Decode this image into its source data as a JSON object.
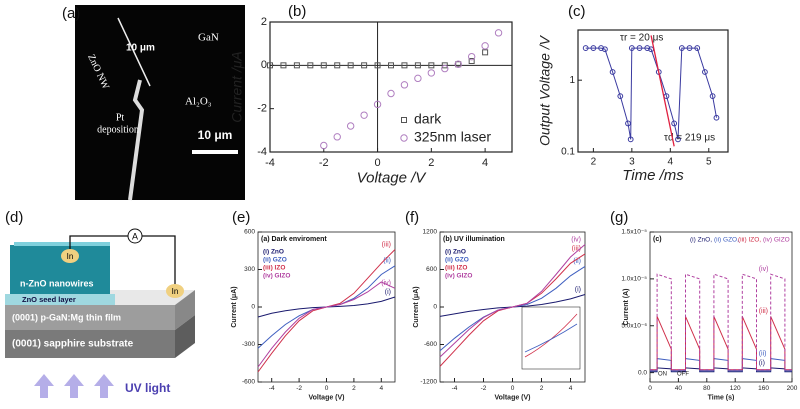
{
  "panel_a": {
    "label": "(a)",
    "gan": "GaN",
    "nw": "ZnO NW",
    "nw_length": "10 μm",
    "pt": "Pt",
    "deposition": "deposition",
    "al2o3": "Al₂O₃",
    "scale_bar": "10 μm"
  },
  "panel_d": {
    "label": "(d)",
    "ammeter": "A",
    "in_left": "In",
    "in_right": "In",
    "nanowires": "n-ZnO nanowires",
    "seed": "ZnO seed layer",
    "gan": "(0001) p-GaN:Mg thin film",
    "sapphire": "(0001) sapphire substrate",
    "uv": "UV light"
  },
  "chart_data": [
    {
      "type": "scatter",
      "panel": "(b)",
      "x_label": "Voltage  /V",
      "y_label": "Current /μA",
      "xlim": [
        -4,
        5
      ],
      "xticks": [
        -4,
        -2,
        0,
        2,
        4
      ],
      "ylim": [
        -4,
        2
      ],
      "yticks": [
        -4,
        -2,
        0,
        2
      ],
      "zero_lines": true,
      "legend": "lower right",
      "series": [
        {
          "name": "dark",
          "color": "#555555",
          "marker": "square",
          "x": [
            -4,
            -3.5,
            -3,
            -2.5,
            -2,
            -1.5,
            -1,
            -0.5,
            0,
            0.5,
            1,
            1.5,
            2,
            2.5,
            3,
            3.5,
            4
          ],
          "values": [
            0,
            0,
            0,
            0,
            0,
            0,
            0,
            0,
            0,
            0,
            0,
            0,
            0,
            0,
            0.05,
            0.2,
            0.6
          ]
        },
        {
          "name": "325nm laser",
          "color": "#b07fc0",
          "marker": "circle",
          "x": [
            -2,
            -1.5,
            -1,
            -0.5,
            0,
            0.5,
            1,
            1.5,
            2,
            2.5,
            3,
            3.5,
            4,
            4.5
          ],
          "values": [
            -3.7,
            -3.3,
            -2.8,
            -2.3,
            -1.8,
            -1.3,
            -0.9,
            -0.6,
            -0.35,
            -0.15,
            0.05,
            0.4,
            0.9,
            1.5
          ]
        }
      ]
    },
    {
      "type": "line",
      "panel": "(c)",
      "x_label": "Time /ms",
      "y_label": "Output Voltage /V",
      "xlim": [
        1.6,
        5.5
      ],
      "xticks": [
        2,
        3,
        4,
        5
      ],
      "ylim": [
        0.1,
        5
      ],
      "yticks": [
        0.1,
        1
      ],
      "yscale": "log",
      "annotations": [
        "τr = 20 μs",
        "τd = 219 μs"
      ],
      "x": [
        1.8,
        2.0,
        2.2,
        2.3,
        2.5,
        2.7,
        2.9,
        2.97,
        3.0,
        3.2,
        3.4,
        3.5,
        3.7,
        3.9,
        4.1,
        4.2,
        4.3,
        4.5,
        4.7,
        4.9,
        5.1,
        5.2
      ],
      "series": [
        {
          "name": null,
          "color": "#3a3aa0",
          "marker": "circle",
          "values": [
            2.8,
            2.8,
            2.8,
            2.7,
            1.3,
            0.6,
            0.25,
            0.15,
            2.8,
            2.8,
            2.8,
            2.7,
            1.3,
            0.6,
            0.25,
            0.15,
            2.8,
            2.8,
            2.8,
            1.3,
            0.6,
            0.3
          ]
        }
      ]
    },
    {
      "type": "line",
      "panel": "(e)",
      "title": "(a) Dark enviroment",
      "x_label": "Voltage (V)",
      "y_label": "Current (μA)",
      "xlim": [
        -5,
        5
      ],
      "xticks": [
        -4,
        -2,
        0,
        2,
        4
      ],
      "ylim": [
        -600,
        600
      ],
      "yticks": [
        -600,
        -300,
        0,
        300,
        600
      ],
      "legend": "upper left",
      "x": [
        -5,
        -4,
        -3,
        -2,
        -1,
        0,
        1,
        2,
        3,
        4,
        5
      ],
      "series": [
        {
          "name": "(i)  ZnO",
          "label": "(i)",
          "color": "#1a1a6e",
          "values": [
            -80,
            -50,
            -30,
            -15,
            -5,
            0,
            5,
            12,
            25,
            45,
            80
          ]
        },
        {
          "name": "(ii)  GZO",
          "label": "(ii)",
          "color": "#3f5fc0",
          "values": [
            -330,
            -230,
            -140,
            -70,
            -20,
            0,
            20,
            70,
            150,
            260,
            330
          ]
        },
        {
          "name": "(iii) IZO",
          "label": "(iii)",
          "color": "#d0304a",
          "values": [
            -520,
            -370,
            -230,
            -110,
            -30,
            0,
            30,
            110,
            230,
            350,
            460
          ]
        },
        {
          "name": "(iv)  GIZO",
          "label": "(iv)",
          "color": "#b040a0",
          "values": [
            -480,
            -330,
            -200,
            -90,
            -20,
            0,
            20,
            60,
            120,
            200,
            150
          ]
        }
      ]
    },
    {
      "type": "line",
      "panel": "(f)",
      "title": "(b) UV illumination",
      "x_label": "Voltage (V)",
      "y_label": "Current (μA)",
      "xlim": [
        -5,
        5
      ],
      "xticks": [
        -4,
        -2,
        0,
        2,
        4
      ],
      "ylim": [
        -1200,
        1200
      ],
      "yticks": [
        -1200,
        -600,
        0,
        600,
        1200
      ],
      "legend": "upper left",
      "x": [
        -5,
        -4,
        -3,
        -2,
        -1,
        0,
        1,
        2,
        3,
        4,
        5
      ],
      "series": [
        {
          "name": "(i)  ZnO",
          "label": "(i)",
          "color": "#1a1a6e",
          "values": [
            -150,
            -110,
            -70,
            -40,
            -15,
            0,
            15,
            40,
            80,
            130,
            200
          ]
        },
        {
          "name": "(ii)  GZO",
          "label": "(ii)",
          "color": "#3f5fc0",
          "values": [
            -700,
            -500,
            -320,
            -160,
            -50,
            0,
            40,
            140,
            300,
            500,
            650
          ]
        },
        {
          "name": "(iii) IZO",
          "label": "(iii)",
          "color": "#d0304a",
          "values": [
            -950,
            -700,
            -450,
            -220,
            -60,
            0,
            60,
            220,
            450,
            700,
            850
          ]
        },
        {
          "name": "(iv)  GIZO",
          "label": "(iv)",
          "color": "#b040a0",
          "values": [
            -800,
            -580,
            -360,
            -170,
            -50,
            0,
            60,
            250,
            520,
            800,
            1000
          ]
        }
      ]
    },
    {
      "type": "line",
      "panel": "(g)",
      "title": "(c)",
      "x_label": "Time (s)",
      "y_label": "Current (A)",
      "xlim": [
        0,
        200
      ],
      "xticks": [
        0,
        40,
        80,
        120,
        160,
        200
      ],
      "ylim": [
        -1e-06,
        1.5e-05
      ],
      "yticks": [
        {
          "value": 0,
          "label": "0.0"
        },
        {
          "value": 5e-06,
          "label": "5.0x10⁻⁶"
        },
        {
          "value": 1e-05,
          "label": "1.0x10⁻⁵"
        },
        {
          "value": 1.5e-05,
          "label": "1.5x10⁻⁵"
        }
      ],
      "legend": "top",
      "annotations": [
        "ON",
        "OFF"
      ],
      "x": [
        0,
        10,
        10,
        30,
        30,
        50,
        50,
        70,
        70,
        90,
        90,
        110,
        110,
        130,
        130,
        150,
        150,
        170,
        170,
        190,
        190,
        200
      ],
      "series": [
        {
          "name": "(i) ZnO,",
          "label": "(i)",
          "color": "#1a1a6e",
          "values": [
            1e-07,
            1e-07,
            5e-07,
            4e-07,
            1e-07,
            1e-07,
            5e-07,
            4e-07,
            1e-07,
            1e-07,
            5e-07,
            4e-07,
            1e-07,
            1e-07,
            5e-07,
            4e-07,
            1e-07,
            1e-07,
            5e-07,
            4e-07,
            1e-07,
            1e-07
          ]
        },
        {
          "name": "(ii) GZO,",
          "label": "(ii)",
          "color": "#3f5fc0",
          "values": [
            2e-07,
            2e-07,
            1.5e-06,
            1.3e-06,
            2e-07,
            2e-07,
            1.5e-06,
            1.3e-06,
            2e-07,
            2e-07,
            1.5e-06,
            1.3e-06,
            2e-07,
            2e-07,
            1.5e-06,
            1.3e-06,
            2e-07,
            2e-07,
            1.5e-06,
            1.3e-06,
            2e-07,
            2e-07
          ]
        },
        {
          "name": "(iii) IZO,",
          "label": "(iii)",
          "color": "#d0304a",
          "values": [
            3e-07,
            3e-07,
            6e-06,
            2.5e-06,
            3e-07,
            3e-07,
            6e-06,
            2.5e-06,
            3e-07,
            3e-07,
            6e-06,
            2.5e-06,
            3e-07,
            3e-07,
            6e-06,
            2.5e-06,
            3e-07,
            3e-07,
            6e-06,
            2.5e-06,
            3e-07,
            3e-07
          ]
        },
        {
          "name": "(iv) GIZO",
          "label": "(iv)",
          "color": "#b040a0",
          "dashed": true,
          "values": [
            3e-07,
            3e-07,
            1.05e-05,
            1e-05,
            3e-07,
            3e-07,
            1.05e-05,
            1e-05,
            3e-07,
            3e-07,
            1.05e-05,
            1e-05,
            3e-07,
            3e-07,
            1.05e-05,
            1e-05,
            3e-07,
            3e-07,
            1.05e-05,
            1e-05,
            3e-07,
            3e-07
          ]
        }
      ]
    }
  ]
}
